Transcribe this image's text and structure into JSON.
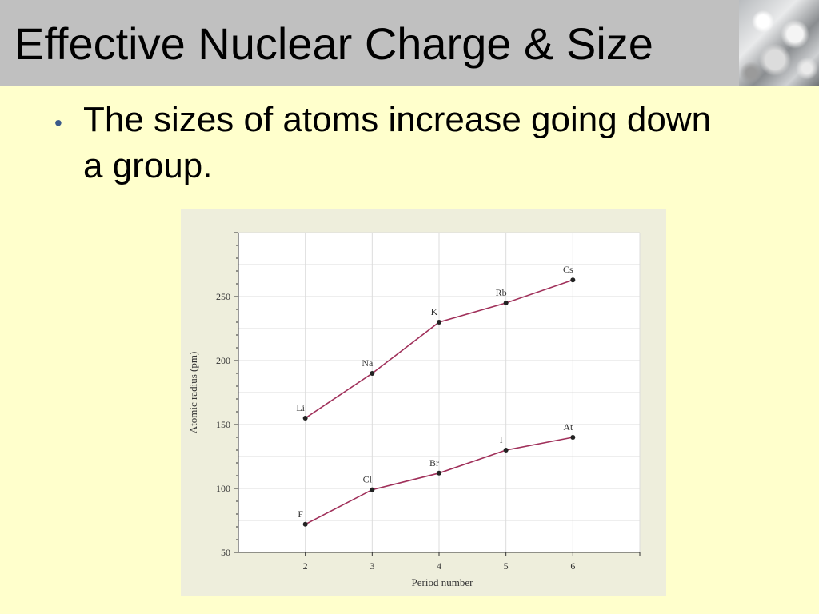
{
  "slide": {
    "title": "Effective Nuclear Charge & Size",
    "bullet_text": "The sizes of atoms increase going down a group."
  },
  "icons": {
    "bullet": "bullet-icon",
    "header_image": "ice-crystal-image"
  },
  "colors": {
    "background": "#ffffcc",
    "title_bar": "#c0c0c0",
    "bullet": "#3b5a8a",
    "series_line": "#a0305a",
    "marker": "#222222"
  },
  "chart_data": {
    "type": "line",
    "xlabel": "Period number",
    "ylabel": "Atomic radius (pm)",
    "x": [
      2,
      3,
      4,
      5,
      6
    ],
    "xlim": [
      1,
      7
    ],
    "ylim": [
      50,
      300
    ],
    "xticks": [
      "2",
      "3",
      "4",
      "5",
      "6"
    ],
    "yticks": [
      "50",
      "100",
      "150",
      "200",
      "250"
    ],
    "grid": true,
    "series": [
      {
        "labels": [
          "Li",
          "Na",
          "K",
          "Rb",
          "Cs"
        ],
        "values": [
          155,
          190,
          230,
          245,
          263
        ]
      },
      {
        "labels": [
          "F",
          "Cl",
          "Br",
          "I",
          "At"
        ],
        "values": [
          72,
          99,
          112,
          130,
          140
        ]
      }
    ]
  }
}
